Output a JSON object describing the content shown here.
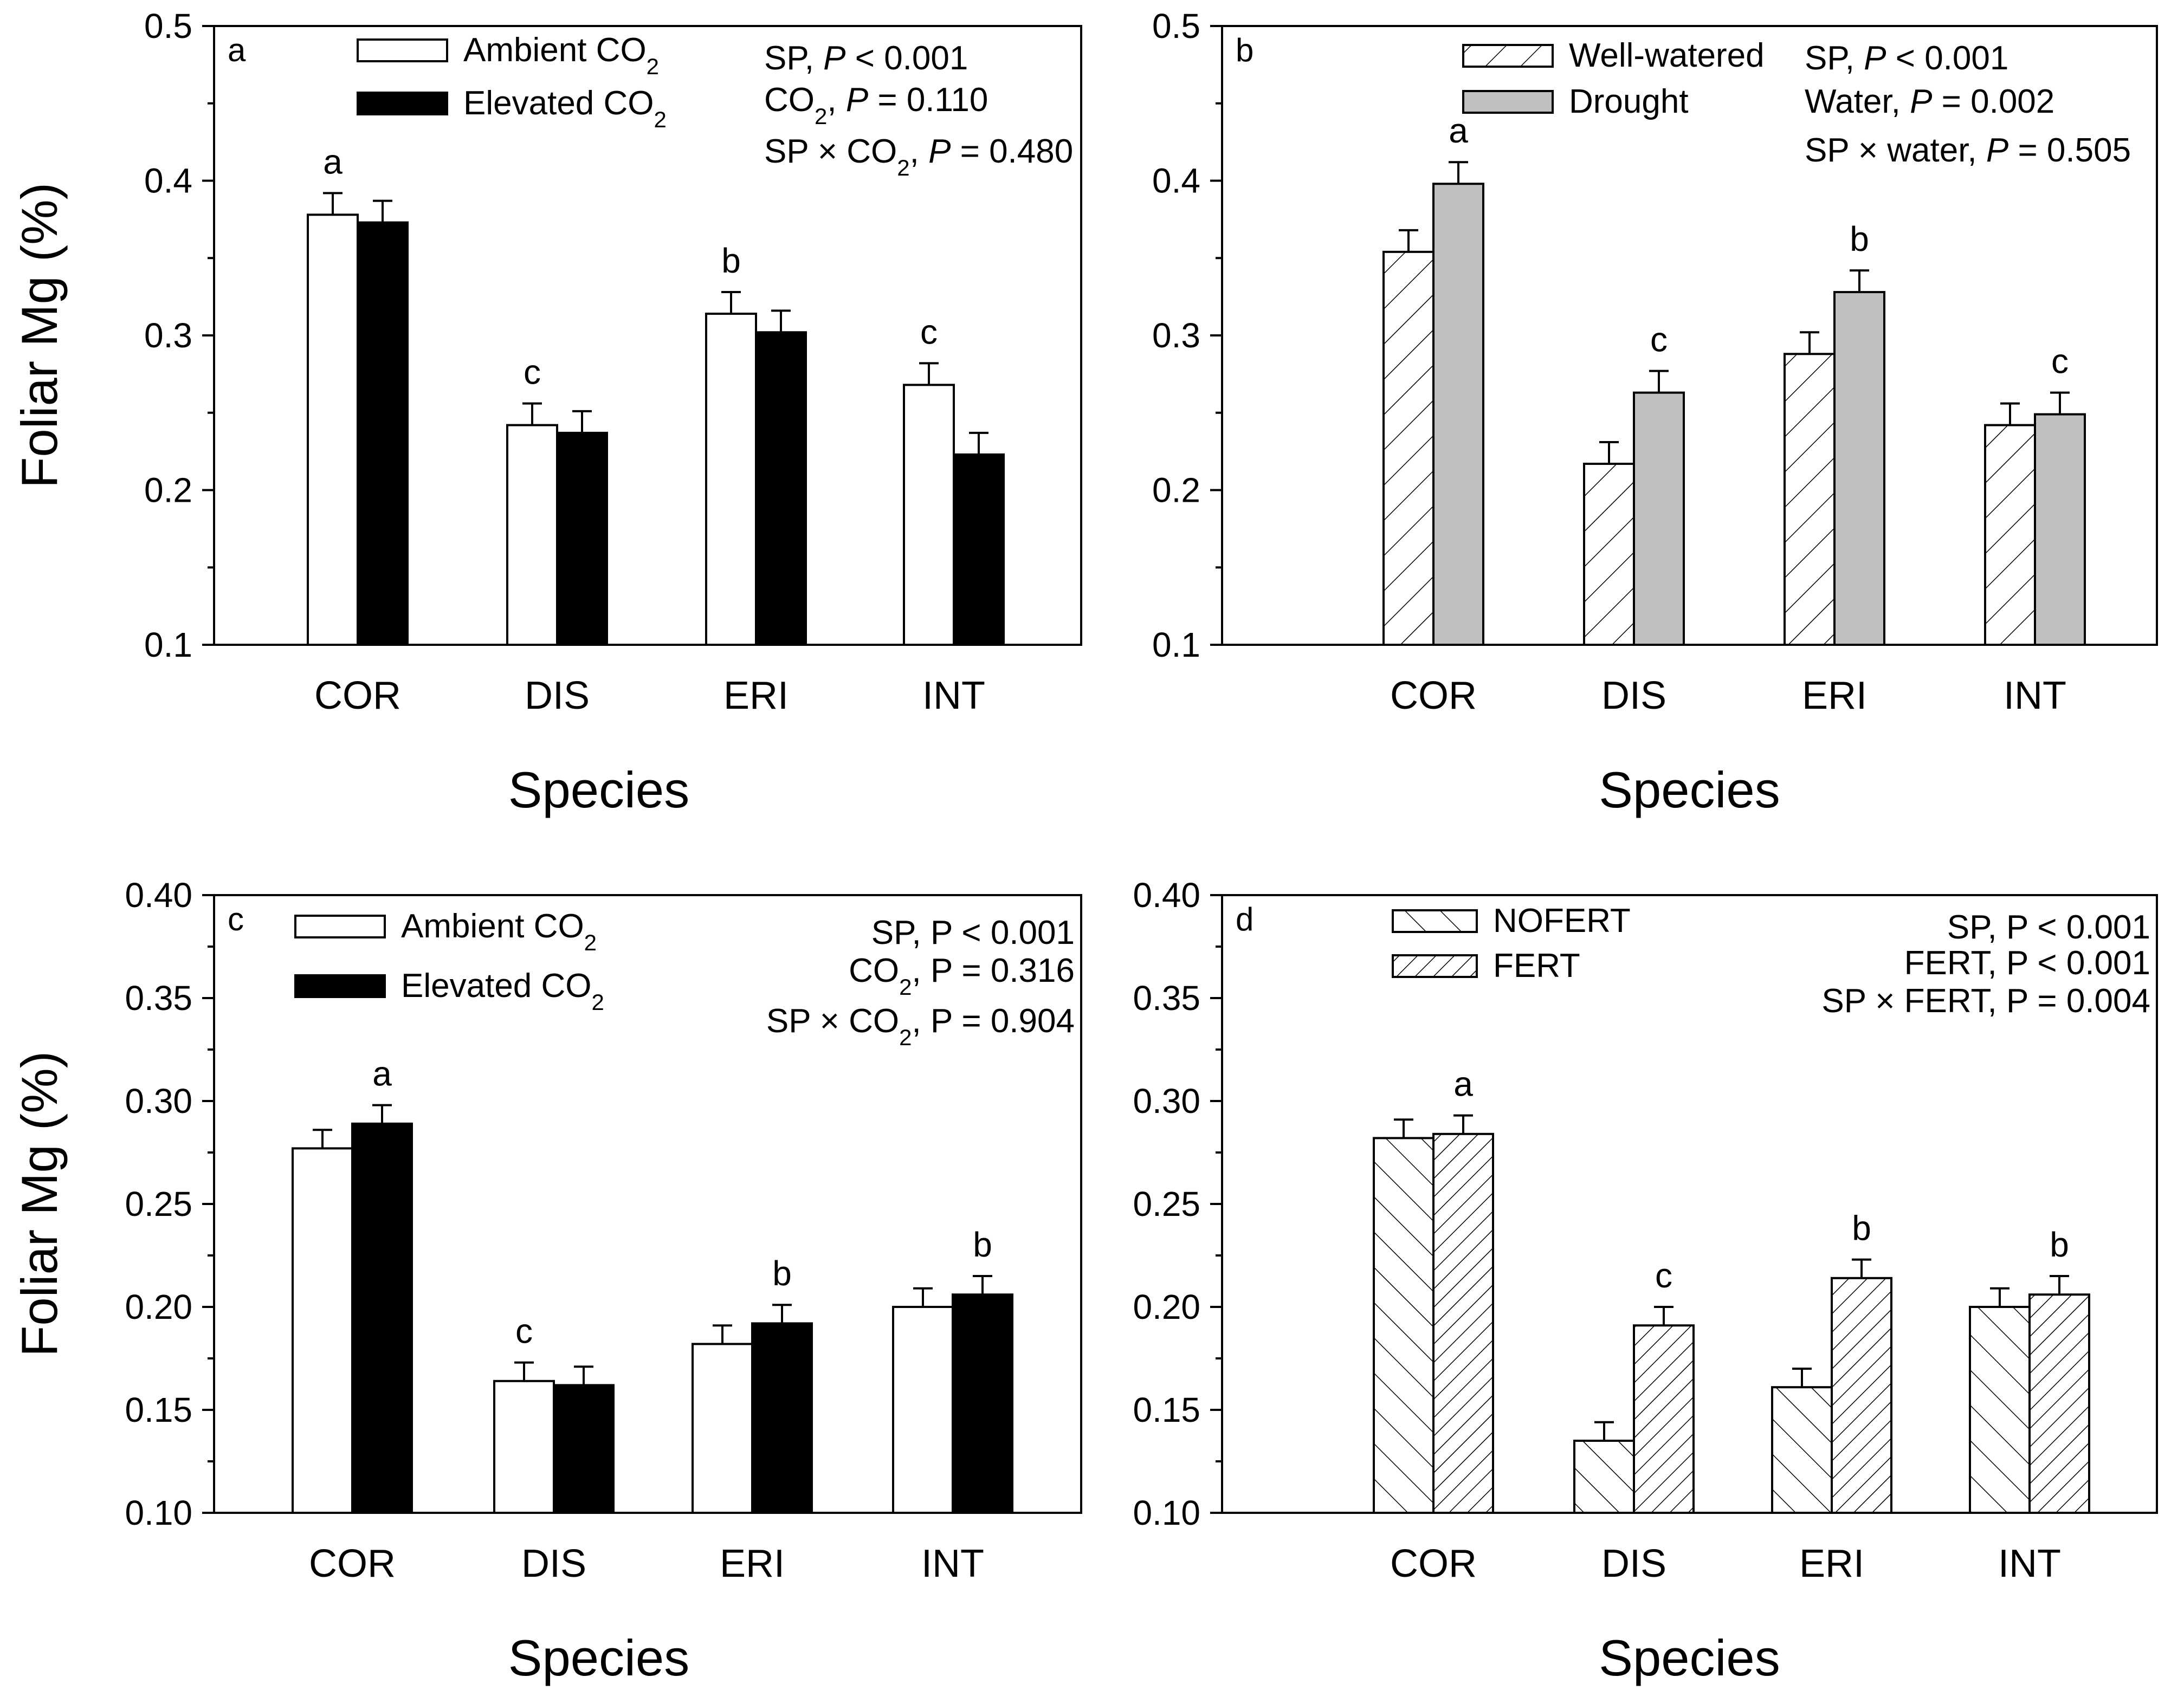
{
  "chart_data": [
    {
      "type": "bar",
      "panel": "a",
      "ylabel": "Foliar Mg (%)",
      "xlabel": "Species",
      "categories": [
        "COR",
        "DIS",
        "ERI",
        "INT"
      ],
      "ylim": [
        0.1,
        0.5
      ],
      "yticks": [
        "0.1",
        "0.2",
        "0.3",
        "0.4",
        "0.5"
      ],
      "series": [
        {
          "name": "Ambient CO2",
          "style": "white",
          "values": [
            0.378,
            0.242,
            0.314,
            0.268
          ],
          "errors": [
            0.014,
            0.014,
            0.014,
            0.014
          ]
        },
        {
          "name": "Elevated CO2",
          "style": "black",
          "values": [
            0.373,
            0.237,
            0.302,
            0.223
          ],
          "errors": [
            0.014,
            0.014,
            0.014,
            0.014
          ]
        }
      ],
      "legend": [
        {
          "base": "Ambient CO",
          "sub": "2"
        },
        {
          "base": "Elevated CO",
          "sub": "2"
        }
      ],
      "sig_letters": [
        "a",
        "c",
        "b",
        "c"
      ],
      "stats": [
        [
          {
            "t": "SP, "
          },
          {
            "t": "P",
            "i": true
          },
          {
            "t": " < 0.001"
          }
        ],
        [
          {
            "t": "CO"
          },
          {
            "t": "2",
            "sub": true
          },
          {
            "t": ", "
          },
          {
            "t": "P",
            "i": true
          },
          {
            "t": "  = 0.110"
          }
        ],
        [
          {
            "t": "SP × CO"
          },
          {
            "t": "2",
            "sub": true
          },
          {
            "t": ", "
          },
          {
            "t": "P",
            "i": true
          },
          {
            "t": " = 0.480"
          }
        ]
      ],
      "stats_align": "left"
    },
    {
      "type": "bar",
      "panel": "b",
      "ylabel": "",
      "xlabel": "Species",
      "categories": [
        "COR",
        "DIS",
        "ERI",
        "INT"
      ],
      "ylim": [
        0.1,
        0.5
      ],
      "yticks": [
        "0.1",
        "0.2",
        "0.3",
        "0.4",
        "0.5"
      ],
      "series": [
        {
          "name": "Well-watered",
          "style": "hatch-fwd",
          "values": [
            0.354,
            0.217,
            0.288,
            0.242
          ],
          "errors": [
            0.014,
            0.014,
            0.014,
            0.014
          ]
        },
        {
          "name": "Drought",
          "style": "gray",
          "values": [
            0.398,
            0.263,
            0.328,
            0.249
          ],
          "errors": [
            0.014,
            0.014,
            0.014,
            0.014
          ]
        }
      ],
      "legend": [
        {
          "base": "Well-watered",
          "sub": ""
        },
        {
          "base": "Drought",
          "sub": ""
        }
      ],
      "sig_letters": [
        "a",
        "c",
        "b",
        "c"
      ],
      "stats": [
        [
          {
            "t": "SP, "
          },
          {
            "t": "P",
            "i": true
          },
          {
            "t": " < 0.001"
          }
        ],
        [
          {
            "t": "Water, "
          },
          {
            "t": "P",
            "i": true
          },
          {
            "t": " = 0.002"
          }
        ],
        [
          {
            "t": "SP × water, "
          },
          {
            "t": "P",
            "i": true
          },
          {
            "t": " = 0.505"
          }
        ]
      ],
      "stats_align": "left"
    },
    {
      "type": "bar",
      "panel": "c",
      "ylabel": "Foliar Mg (%)",
      "xlabel": "Species",
      "categories": [
        "COR",
        "DIS",
        "ERI",
        "INT"
      ],
      "ylim": [
        0.1,
        0.4
      ],
      "yticks": [
        "0.10",
        "0.15",
        "0.20",
        "0.25",
        "0.30",
        "0.35",
        "0.40"
      ],
      "series": [
        {
          "name": "Ambient CO2",
          "style": "white",
          "values": [
            0.277,
            0.164,
            0.182,
            0.2
          ],
          "errors": [
            0.009,
            0.009,
            0.009,
            0.009
          ]
        },
        {
          "name": "Elevated CO2",
          "style": "black",
          "values": [
            0.289,
            0.162,
            0.192,
            0.206
          ],
          "errors": [
            0.009,
            0.009,
            0.009,
            0.009
          ]
        }
      ],
      "legend": [
        {
          "base": "Ambient CO",
          "sub": "2"
        },
        {
          "base": "Elevated CO",
          "sub": "2"
        }
      ],
      "sig_letters": [
        "a",
        "c",
        "b",
        "b"
      ],
      "stats": [
        [
          {
            "t": "SP, P < 0.001"
          }
        ],
        [
          {
            "t": "CO"
          },
          {
            "t": "2",
            "sub": true
          },
          {
            "t": ", P = 0.316"
          }
        ],
        [
          {
            "t": "SP × CO"
          },
          {
            "t": "2",
            "sub": true
          },
          {
            "t": ", P = 0.904"
          }
        ]
      ],
      "stats_align": "right"
    },
    {
      "type": "bar",
      "panel": "d",
      "ylabel": "",
      "xlabel": "Species",
      "categories": [
        "COR",
        "DIS",
        "ERI",
        "INT"
      ],
      "ylim": [
        0.1,
        0.4
      ],
      "yticks": [
        "0.10",
        "0.15",
        "0.20",
        "0.25",
        "0.30",
        "0.35",
        "0.40"
      ],
      "series": [
        {
          "name": "NOFERT",
          "style": "hatch-back",
          "values": [
            0.282,
            0.135,
            0.161,
            0.2
          ],
          "errors": [
            0.009,
            0.009,
            0.009,
            0.009
          ]
        },
        {
          "name": "FERT",
          "style": "hatch-dense",
          "values": [
            0.284,
            0.191,
            0.214,
            0.206
          ],
          "errors": [
            0.009,
            0.009,
            0.009,
            0.009
          ]
        }
      ],
      "legend": [
        {
          "base": "NOFERT",
          "sub": ""
        },
        {
          "base": "FERT",
          "sub": ""
        }
      ],
      "sig_letters": [
        "a",
        "c",
        "b",
        "b"
      ],
      "stats": [
        [
          {
            "t": "SP, P < 0.001"
          }
        ],
        [
          {
            "t": "FERT, P < 0.001"
          }
        ],
        [
          {
            "t": "SP × FERT, P = 0.004"
          }
        ]
      ],
      "stats_align": "right"
    }
  ],
  "colors": {
    "black": "#000000",
    "white": "#ffffff",
    "gray": "#c0c0c0"
  }
}
